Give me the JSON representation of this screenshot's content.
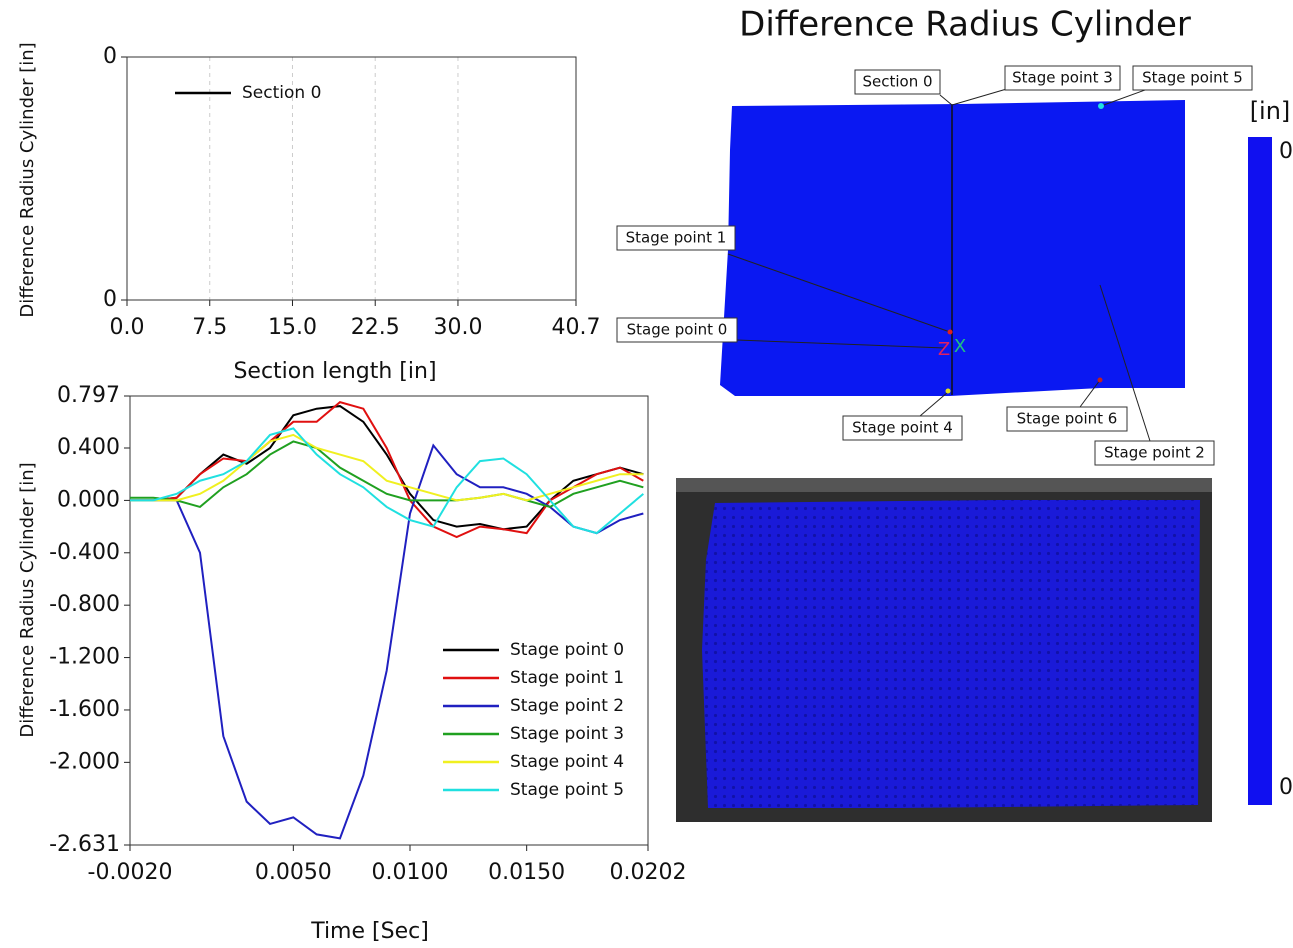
{
  "chart_data": [
    {
      "type": "line",
      "y_label": "Difference Radius Cylinder [in]",
      "x_label": "Section length [in]",
      "xlim": [
        0,
        40.7
      ],
      "xticks": [
        {
          "value": 0,
          "label": "0.0"
        },
        7.5,
        {
          "value": 15,
          "label": "15.0"
        },
        22.5,
        {
          "value": 30,
          "label": "30.0"
        },
        40.7
      ],
      "ylim": [
        -0.0005,
        0.0005
      ],
      "yticks": [
        {
          "value": 0.0005,
          "label": "0"
        },
        {
          "value": -0.0005,
          "label": "0"
        }
      ],
      "grid": true,
      "legend": "upper left",
      "x": [],
      "series": [
        {
          "name": "Section 0",
          "color": "#000000",
          "values": []
        }
      ]
    },
    {
      "type": "line",
      "y_label": "Difference Radius Cylinder [in]",
      "x_label": "Time [Sec]",
      "xlim": [
        -0.002,
        0.0202
      ],
      "xticks": [
        {
          "value": -0.002,
          "label": "-0.0020"
        },
        {
          "value": 0.005,
          "label": "0.0050"
        },
        {
          "value": 0.01,
          "label": "0.0100"
        },
        {
          "value": 0.015,
          "label": "0.0150"
        },
        0.0202
      ],
      "ylim": [
        -2.631,
        0.797
      ],
      "yticks": [
        0.797,
        {
          "value": 0.4,
          "label": "0.400"
        },
        {
          "value": 0,
          "label": "0.000"
        },
        {
          "value": -0.4,
          "label": "-0.400"
        },
        {
          "value": -0.8,
          "label": "-0.800"
        },
        {
          "value": -1.2,
          "label": "-1.200"
        },
        {
          "value": -1.6,
          "label": "-1.600"
        },
        {
          "value": -2,
          "label": "-2.000"
        },
        -2.631
      ],
      "grid": false,
      "legend": "lower right",
      "x": [
        -0.002,
        -0.001,
        0,
        0.001,
        0.002,
        0.003,
        0.004,
        0.005,
        0.006,
        0.007,
        0.008,
        0.009,
        0.01,
        0.011,
        0.012,
        0.013,
        0.014,
        0.015,
        0.016,
        0.017,
        0.018,
        0.019,
        0.02
      ],
      "series": [
        {
          "name": "Stage point 0",
          "color": "#000000",
          "values": [
            0,
            0,
            0.02,
            0.2,
            0.35,
            0.28,
            0.4,
            0.65,
            0.7,
            0.72,
            0.6,
            0.35,
            0.05,
            -0.15,
            -0.2,
            -0.18,
            -0.22,
            -0.2,
            0,
            0.15,
            0.2,
            0.25,
            0.2
          ]
        },
        {
          "name": "Stage point 1",
          "color": "#e01010",
          "values": [
            0,
            0,
            0.02,
            0.2,
            0.32,
            0.3,
            0.45,
            0.6,
            0.6,
            0.75,
            0.7,
            0.4,
            0,
            -0.2,
            -0.28,
            -0.2,
            -0.22,
            -0.25,
            0,
            0.1,
            0.2,
            0.25,
            0.15
          ]
        },
        {
          "name": "Stage point 2",
          "color": "#2020c0",
          "values": [
            0,
            0,
            0,
            -0.4,
            -1.8,
            -2.3,
            -2.47,
            -2.42,
            -2.55,
            -2.58,
            -2.1,
            -1.3,
            -0.1,
            0.42,
            0.2,
            0.1,
            0.1,
            0.05,
            -0.05,
            -0.2,
            -0.25,
            -0.15,
            -0.1
          ]
        },
        {
          "name": "Stage point 3",
          "color": "#20a020",
          "values": [
            0.02,
            0.02,
            0,
            -0.05,
            0.1,
            0.2,
            0.35,
            0.45,
            0.4,
            0.25,
            0.15,
            0.05,
            0,
            0,
            0,
            0.02,
            0.05,
            0,
            -0.05,
            0.05,
            0.1,
            0.15,
            0.1
          ]
        },
        {
          "name": "Stage point 4",
          "color": "#f0f020",
          "values": [
            0,
            0,
            0,
            0.05,
            0.15,
            0.3,
            0.45,
            0.5,
            0.4,
            0.35,
            0.3,
            0.15,
            0.1,
            0.05,
            0,
            0.02,
            0.05,
            0,
            0.05,
            0.1,
            0.15,
            0.2,
            0.2
          ]
        },
        {
          "name": "Stage point 5",
          "color": "#20e0e0",
          "values": [
            0,
            0,
            0.05,
            0.15,
            0.2,
            0.3,
            0.5,
            0.55,
            0.35,
            0.2,
            0.1,
            -0.05,
            -0.15,
            -0.2,
            0.1,
            0.3,
            0.32,
            0.2,
            0,
            -0.2,
            -0.25,
            -0.1,
            0.05
          ]
        }
      ]
    }
  ],
  "surface_view": {
    "title": "Difference Radius Cylinder",
    "unit": "[in]",
    "scale_top": "0",
    "scale_bottom": "0",
    "labels": [
      "Section 0",
      "Stage point 3",
      "Stage point 5",
      "Stage point 1",
      "Stage point 0",
      "Stage point 4",
      "Stage point 6",
      "Stage point 2"
    ],
    "axis_letters": [
      "Z",
      "X"
    ]
  }
}
